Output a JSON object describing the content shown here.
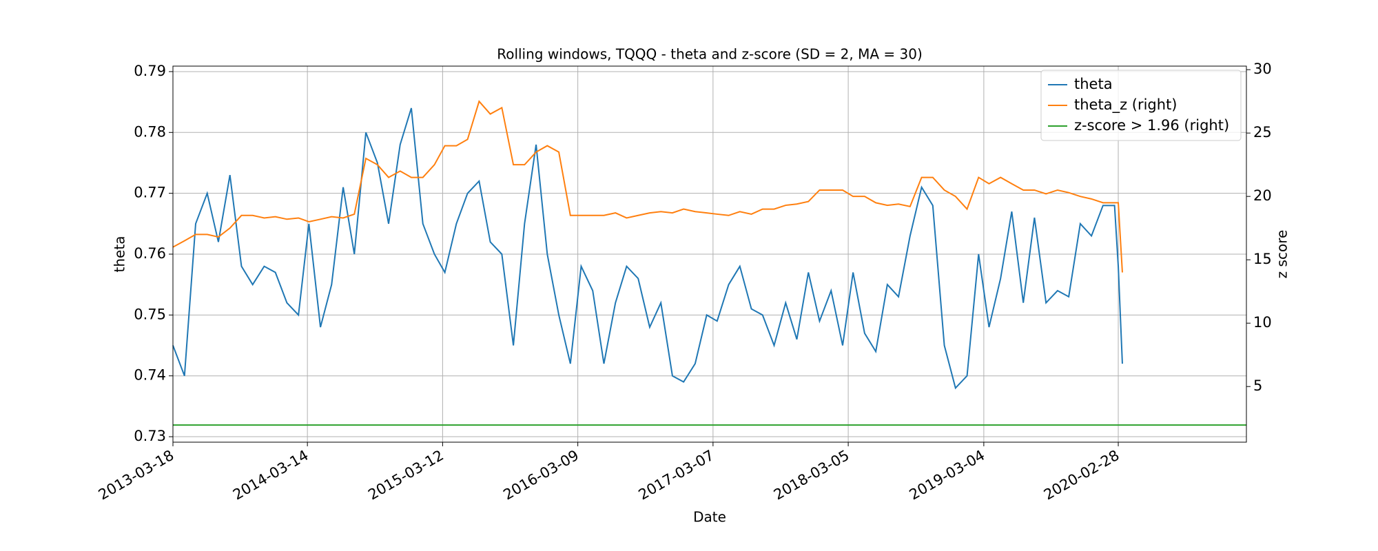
{
  "chart_data": {
    "type": "line",
    "title": "Rolling windows, TQQQ - theta and z-score (SD = 2, MA = 30)",
    "xlabel": "Date",
    "ylabel": "theta",
    "y2label": "z score",
    "xlim": [
      "2013-03-18",
      "2021-02-06"
    ],
    "xticks": [
      "2013-03-18",
      "2014-03-14",
      "2015-03-12",
      "2016-03-09",
      "2017-03-07",
      "2018-03-05",
      "2019-03-04",
      "2020-02-28"
    ],
    "ylim": [
      0.7291,
      0.7909
    ],
    "yticks": [
      0.73,
      0.74,
      0.75,
      0.76,
      0.77,
      0.78,
      0.79
    ],
    "y2lim": [
      0.61,
      30.28
    ],
    "y2ticks": [
      5,
      10,
      15,
      20,
      25,
      30
    ],
    "grid": true,
    "legend": "upper right",
    "series": [
      {
        "name": "theta",
        "color": "#1f77b4",
        "x": [
          "2013-03-18",
          "2013-04-18",
          "2013-05-18",
          "2013-06-18",
          "2013-07-18",
          "2013-08-18",
          "2013-09-18",
          "2013-10-18",
          "2013-11-18",
          "2013-12-18",
          "2014-01-18",
          "2014-02-18",
          "2014-03-18",
          "2014-04-18",
          "2014-05-18",
          "2014-06-18",
          "2014-07-18",
          "2014-08-18",
          "2014-09-18",
          "2014-10-18",
          "2014-11-18",
          "2014-12-18",
          "2015-01-18",
          "2015-02-18",
          "2015-03-18",
          "2015-04-18",
          "2015-05-18",
          "2015-06-18",
          "2015-07-18",
          "2015-08-18",
          "2015-09-18",
          "2015-10-18",
          "2015-11-18",
          "2015-12-18",
          "2016-01-18",
          "2016-02-18",
          "2016-03-18",
          "2016-04-18",
          "2016-05-18",
          "2016-06-18",
          "2016-07-18",
          "2016-08-18",
          "2016-09-18",
          "2016-10-18",
          "2016-11-18",
          "2016-12-18",
          "2017-01-18",
          "2017-02-18",
          "2017-03-18",
          "2017-04-18",
          "2017-05-18",
          "2017-06-18",
          "2017-07-18",
          "2017-08-18",
          "2017-09-18",
          "2017-10-18",
          "2017-11-18",
          "2017-12-18",
          "2018-01-18",
          "2018-02-18",
          "2018-03-18",
          "2018-04-18",
          "2018-05-18",
          "2018-06-18",
          "2018-07-18",
          "2018-08-18",
          "2018-09-18",
          "2018-10-18",
          "2018-11-18",
          "2018-12-18",
          "2019-01-18",
          "2019-02-18",
          "2019-03-18",
          "2019-04-18",
          "2019-05-18",
          "2019-06-18",
          "2019-07-18",
          "2019-08-18",
          "2019-09-18",
          "2019-10-18",
          "2019-11-18",
          "2019-12-18",
          "2020-01-18",
          "2020-02-18",
          "2020-02-28",
          "2020-03-10"
        ],
        "values": [
          0.745,
          0.74,
          0.765,
          0.77,
          0.762,
          0.773,
          0.758,
          0.755,
          0.758,
          0.757,
          0.752,
          0.75,
          0.765,
          0.748,
          0.755,
          0.771,
          0.76,
          0.78,
          0.775,
          0.765,
          0.778,
          0.784,
          0.765,
          0.76,
          0.757,
          0.765,
          0.77,
          0.772,
          0.762,
          0.76,
          0.745,
          0.765,
          0.778,
          0.76,
          0.75,
          0.742,
          0.758,
          0.754,
          0.742,
          0.752,
          0.758,
          0.756,
          0.748,
          0.752,
          0.74,
          0.739,
          0.742,
          0.75,
          0.749,
          0.755,
          0.758,
          0.751,
          0.75,
          0.745,
          0.752,
          0.746,
          0.757,
          0.749,
          0.754,
          0.745,
          0.757,
          0.747,
          0.744,
          0.755,
          0.753,
          0.763,
          0.771,
          0.768,
          0.745,
          0.738,
          0.74,
          0.76,
          0.748,
          0.756,
          0.767,
          0.752,
          0.766,
          0.752,
          0.754,
          0.753,
          0.765,
          0.763,
          0.768,
          0.768,
          0.758,
          0.742
        ]
      },
      {
        "name": "theta_z (right)",
        "color": "#ff7f0e",
        "axis": "y2",
        "x": [
          "2013-03-18",
          "2013-04-18",
          "2013-05-18",
          "2013-06-18",
          "2013-07-18",
          "2013-08-18",
          "2013-09-18",
          "2013-10-18",
          "2013-11-18",
          "2013-12-18",
          "2014-01-18",
          "2014-02-18",
          "2014-03-18",
          "2014-04-18",
          "2014-05-18",
          "2014-06-18",
          "2014-07-18",
          "2014-08-18",
          "2014-09-18",
          "2014-10-18",
          "2014-11-18",
          "2014-12-18",
          "2015-01-18",
          "2015-02-18",
          "2015-03-18",
          "2015-04-18",
          "2015-05-18",
          "2015-06-18",
          "2015-07-18",
          "2015-08-18",
          "2015-09-18",
          "2015-10-18",
          "2015-11-18",
          "2015-12-18",
          "2016-01-18",
          "2016-02-18",
          "2016-03-18",
          "2016-04-18",
          "2016-05-18",
          "2016-06-18",
          "2016-07-18",
          "2016-08-18",
          "2016-09-18",
          "2016-10-18",
          "2016-11-18",
          "2016-12-18",
          "2017-01-18",
          "2017-02-18",
          "2017-03-18",
          "2017-04-18",
          "2017-05-18",
          "2017-06-18",
          "2017-07-18",
          "2017-08-18",
          "2017-09-18",
          "2017-10-18",
          "2017-11-18",
          "2017-12-18",
          "2018-01-18",
          "2018-02-18",
          "2018-03-18",
          "2018-04-18",
          "2018-05-18",
          "2018-06-18",
          "2018-07-18",
          "2018-08-18",
          "2018-09-18",
          "2018-10-18",
          "2018-11-18",
          "2018-12-18",
          "2019-01-18",
          "2019-02-18",
          "2019-03-18",
          "2019-04-18",
          "2019-05-18",
          "2019-06-18",
          "2019-07-18",
          "2019-08-18",
          "2019-09-18",
          "2019-10-18",
          "2019-11-18",
          "2019-12-18",
          "2020-01-18",
          "2020-02-18",
          "2020-02-28",
          "2020-03-10"
        ],
        "values": [
          16,
          16.5,
          17,
          17,
          16.8,
          17.5,
          18.5,
          18.5,
          18.3,
          18.4,
          18.2,
          18.3,
          18,
          18.2,
          18.4,
          18.3,
          18.6,
          23,
          22.5,
          21.5,
          22,
          21.5,
          21.5,
          22.5,
          24,
          24,
          24.5,
          27.5,
          26.5,
          27,
          22.5,
          22.5,
          23.5,
          24,
          23.5,
          18.5,
          18.5,
          18.5,
          18.5,
          18.7,
          18.3,
          18.5,
          18.7,
          18.8,
          18.7,
          19,
          18.8,
          18.7,
          18.6,
          18.5,
          18.8,
          18.6,
          19,
          19,
          19.3,
          19.4,
          19.6,
          20.5,
          20.5,
          20.5,
          20,
          20,
          19.5,
          19.3,
          19.4,
          19.2,
          21.5,
          21.5,
          20.5,
          20,
          19,
          21.5,
          21,
          21.5,
          21,
          20.5,
          20.5,
          20.2,
          20.5,
          20.3,
          20,
          19.8,
          19.5,
          19.5,
          19.5,
          14
        ]
      },
      {
        "name": "z-score > 1.96 (right)",
        "color": "#2ca02c",
        "axis": "y2",
        "x": [
          "2013-03-18",
          "2021-02-06"
        ],
        "values": [
          1.96,
          1.96
        ]
      }
    ]
  }
}
